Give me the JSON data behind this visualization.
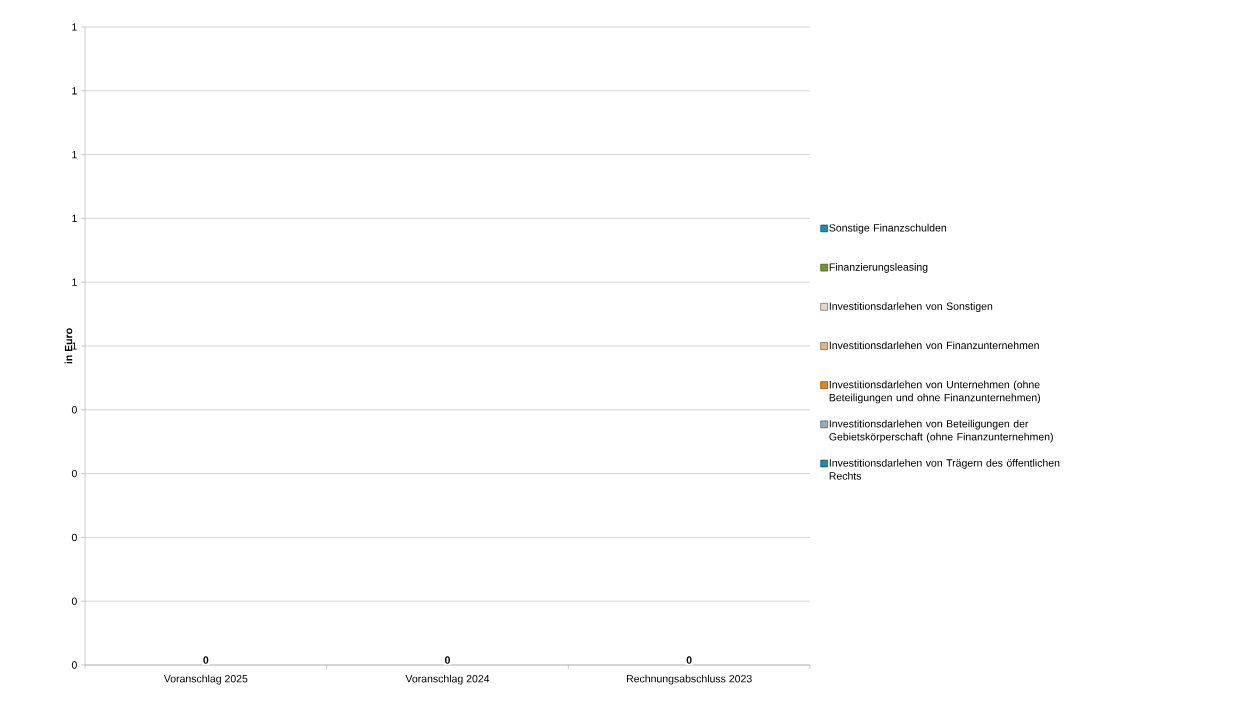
{
  "chart_data": {
    "type": "bar",
    "stacked": true,
    "ylabel": "in Euro",
    "categories": [
      "Voranschlag 2025",
      "Voranschlag 2024",
      "Rechnungsabschluss 2023"
    ],
    "series": [
      {
        "name": "Investitionsdarlehen von Trägern des öffentlichen Rechts",
        "color": "#1a8ea3",
        "values": [
          0,
          0,
          0
        ],
        "value_labels": [
          "0",
          "0",
          "0"
        ]
      },
      {
        "name": "Investitionsdarlehen von Beteiligungen der Gebietskörperschaft (ohne Finanzunternehmen)",
        "color": "#8fb0bc",
        "values": [
          0,
          0,
          0
        ]
      },
      {
        "name": "Investitionsdarlehen von Unternehmen (ohne Beteiligungen und ohne Finanzunternehmen)",
        "color": "#e8860c",
        "values": [
          0,
          0,
          0
        ]
      },
      {
        "name": "Investitionsdarlehen von Finanzunternehmen",
        "color": "#e2b684",
        "values": [
          0,
          0,
          0
        ]
      },
      {
        "name": "Investitionsdarlehen von Sonstigen",
        "color": "#e8d6c6",
        "values": [
          0,
          0,
          0
        ]
      },
      {
        "name": "Finanzierungsleasing",
        "color": "#6e9a22",
        "values": [
          0,
          0,
          0
        ]
      },
      {
        "name": "Sonstige Finanzschulden",
        "color": "#1a8ea3",
        "values": [
          0,
          0,
          0
        ]
      }
    ],
    "ylim": [
      0,
      1
    ],
    "yticks": [
      {
        "value": 0,
        "label": "0"
      },
      {
        "value": 0.1,
        "label": "0"
      },
      {
        "value": 0.2,
        "label": "0"
      },
      {
        "value": 0.3,
        "label": "0"
      },
      {
        "value": 0.4,
        "label": "0"
      },
      {
        "value": 0.5,
        "label": "1"
      },
      {
        "value": 0.6,
        "label": "1"
      },
      {
        "value": 0.7,
        "label": "1"
      },
      {
        "value": 0.8,
        "label": "1"
      },
      {
        "value": 0.9,
        "label": "1"
      },
      {
        "value": 1,
        "label": "1"
      }
    ],
    "grid": "y",
    "legend": "right"
  }
}
